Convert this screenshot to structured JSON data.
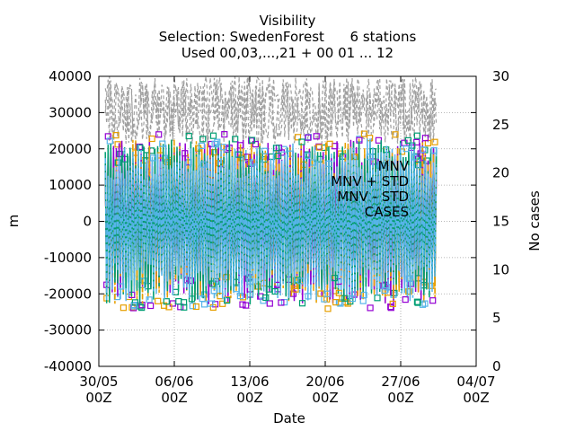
{
  "chart_data": {
    "type": "line",
    "title": [
      "Visibility",
      "Selection: SwedenForest      6 stations",
      "Used 00,03,...,21 + 00 01 ... 12"
    ],
    "ylabel": "m",
    "y2label": "No cases",
    "xlabel": "Date",
    "ylim": [
      -40000,
      40000
    ],
    "y2lim": [
      0,
      30
    ],
    "xlim": [
      0,
      35
    ],
    "yticks": [
      "40000",
      "30000",
      "20000",
      "10000",
      "0",
      "-10000",
      "-20000",
      "-30000",
      "-40000"
    ],
    "y2ticks": [
      "30",
      "25",
      "20",
      "15",
      "10",
      "5",
      "0"
    ],
    "xticks": [
      {
        "line1": "30/05",
        "line2": "00Z"
      },
      {
        "line1": "06/06",
        "line2": "00Z"
      },
      {
        "line1": "13/06",
        "line2": "00Z"
      },
      {
        "line1": "20/06",
        "line2": "00Z"
      },
      {
        "line1": "27/06",
        "line2": "00Z"
      },
      {
        "line1": "04/07",
        "line2": "00Z"
      }
    ],
    "grid": true,
    "legend": {
      "placement": "center",
      "entries": [
        "MNV",
        "MNV + STD",
        "MNV - STD",
        "CASES"
      ]
    },
    "series": [
      {
        "name": "MNV",
        "color": "#9400d3"
      },
      {
        "name": "MNV + STD",
        "color": "#e69f00"
      },
      {
        "name": "MNV - STD",
        "color": "#009e73"
      },
      {
        "name": "CASES",
        "color": "#56b4e9"
      },
      {
        "color": "#9400d3"
      },
      {
        "color": "#e69f00"
      },
      {
        "color": "#009e73"
      },
      {
        "color": "#56b4e9"
      },
      {
        "color": "#a0a0a0"
      }
    ],
    "x_range_days": [
      0.6,
      31.3
    ],
    "envelope": {
      "upper_approx": 22000,
      "lower_approx": -22000,
      "cases_approx": [
        18,
        30
      ]
    }
  }
}
